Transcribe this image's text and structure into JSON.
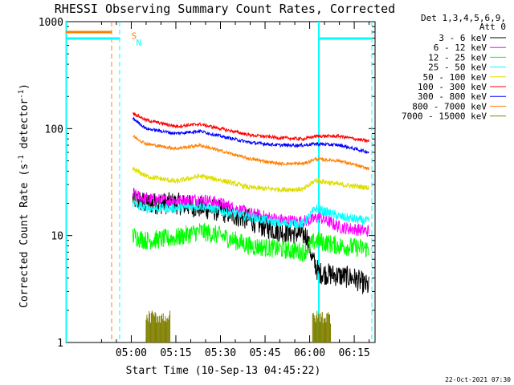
{
  "chart_data": {
    "type": "line",
    "title": "RHESSI Observing Summary Count Rates, Corrected",
    "xlabel": "Start Time (10-Sep-13 04:45:22)",
    "ylabel_prefix": "Corrected Count Rate (s",
    "ylabel_sup1": "-1",
    "ylabel_mid": " detector",
    "ylabel_sup2": "-1",
    "ylabel_suffix": ")",
    "y_scale": "log",
    "ylim": [
      1,
      1000
    ],
    "xlim_minutes_after_0445": [
      -7,
      97
    ],
    "x_ticks": [
      {
        "label": "05:00",
        "min": 15
      },
      {
        "label": "05:15",
        "min": 30
      },
      {
        "label": "05:30",
        "min": 45
      },
      {
        "label": "05:45",
        "min": 60
      },
      {
        "label": "06:00",
        "min": 75
      },
      {
        "label": "06:15",
        "min": 90
      }
    ],
    "y_ticks": [
      {
        "label": "1",
        "v": 1
      },
      {
        "label": "10",
        "v": 10
      },
      {
        "label": "100",
        "v": 100
      },
      {
        "label": "1000",
        "v": 1000
      }
    ],
    "legend_header_1": "Det 1,3,4,5,6,9,",
    "legend_header_2": "Att 0",
    "series": [
      {
        "name": "3 - 6 keV",
        "color": "#000000",
        "anchors": [
          [
            15.5,
            22
          ],
          [
            20,
            20
          ],
          [
            30,
            20
          ],
          [
            45,
            17
          ],
          [
            55,
            14
          ],
          [
            60,
            12
          ],
          [
            65,
            11
          ],
          [
            70,
            10.5
          ],
          [
            74,
            10
          ],
          [
            76,
            6
          ],
          [
            78,
            4.5
          ],
          [
            90,
            4
          ],
          [
            95,
            3.3
          ]
        ],
        "noise": 0.35
      },
      {
        "name": "6 - 12 keV",
        "color": "#ff00ff",
        "anchors": [
          [
            15.5,
            24
          ],
          [
            20,
            22
          ],
          [
            30,
            21
          ],
          [
            38,
            22
          ],
          [
            45,
            20
          ],
          [
            55,
            16
          ],
          [
            65,
            14
          ],
          [
            72,
            13.5
          ],
          [
            76,
            14
          ],
          [
            78,
            15
          ],
          [
            85,
            12
          ],
          [
            95,
            11
          ]
        ],
        "noise": 0.2
      },
      {
        "name": "12 - 25 keV",
        "color": "#00ff00",
        "anchors": [
          [
            15.5,
            10
          ],
          [
            20,
            9
          ],
          [
            30,
            9.5
          ],
          [
            38,
            11
          ],
          [
            45,
            10
          ],
          [
            55,
            8
          ],
          [
            65,
            7.5
          ],
          [
            73,
            7
          ],
          [
            77,
            9
          ],
          [
            85,
            8
          ],
          [
            95,
            7.5
          ]
        ],
        "noise": 0.3
      },
      {
        "name": "25 - 50 keV",
        "color": "#00ffff",
        "anchors": [
          [
            15.5,
            20
          ],
          [
            20,
            18
          ],
          [
            30,
            18
          ],
          [
            38,
            19
          ],
          [
            45,
            17
          ],
          [
            55,
            15
          ],
          [
            65,
            13
          ],
          [
            73,
            13
          ],
          [
            77,
            18
          ],
          [
            85,
            15
          ],
          [
            95,
            13.5
          ]
        ],
        "noise": 0.15
      },
      {
        "name": "50 - 100 keV",
        "color": "#dddd00",
        "anchors": [
          [
            15.5,
            42
          ],
          [
            20,
            36
          ],
          [
            30,
            32
          ],
          [
            38,
            36
          ],
          [
            45,
            33
          ],
          [
            55,
            28
          ],
          [
            65,
            27
          ],
          [
            73,
            27
          ],
          [
            77,
            33
          ],
          [
            85,
            30
          ],
          [
            95,
            28
          ]
        ],
        "noise": 0.08
      },
      {
        "name": "100 - 300 keV",
        "color": "#ff0000",
        "anchors": [
          [
            15.5,
            140
          ],
          [
            20,
            120
          ],
          [
            30,
            105
          ],
          [
            38,
            110
          ],
          [
            45,
            100
          ],
          [
            55,
            87
          ],
          [
            65,
            82
          ],
          [
            73,
            80
          ],
          [
            77,
            85
          ],
          [
            85,
            85
          ],
          [
            95,
            76
          ]
        ],
        "noise": 0.05
      },
      {
        "name": "300 - 800 keV",
        "color": "#0000ff",
        "anchors": [
          [
            15.5,
            125
          ],
          [
            20,
            100
          ],
          [
            30,
            90
          ],
          [
            38,
            95
          ],
          [
            45,
            85
          ],
          [
            55,
            74
          ],
          [
            65,
            70
          ],
          [
            73,
            70
          ],
          [
            77,
            72
          ],
          [
            85,
            70
          ],
          [
            95,
            60
          ]
        ],
        "noise": 0.05
      },
      {
        "name": "800 - 7000 keV",
        "color": "#ff8000",
        "anchors": [
          [
            15.5,
            85
          ],
          [
            20,
            72
          ],
          [
            30,
            65
          ],
          [
            38,
            70
          ],
          [
            45,
            62
          ],
          [
            55,
            52
          ],
          [
            65,
            47
          ],
          [
            73,
            47
          ],
          [
            77,
            52
          ],
          [
            85,
            50
          ],
          [
            95,
            42
          ]
        ],
        "noise": 0.05
      },
      {
        "name": "7000 - 15000 keV",
        "color": "#808000",
        "anchors": [],
        "noise": 0
      }
    ],
    "annotations": [
      {
        "text": "S",
        "color": "#ff8000",
        "min": 13.7,
        "level": 750
      },
      {
        "text": "N",
        "color": "#00ffff",
        "min": 15.3,
        "level": 650
      }
    ],
    "footer": "22-Oct-2021 07:30"
  }
}
